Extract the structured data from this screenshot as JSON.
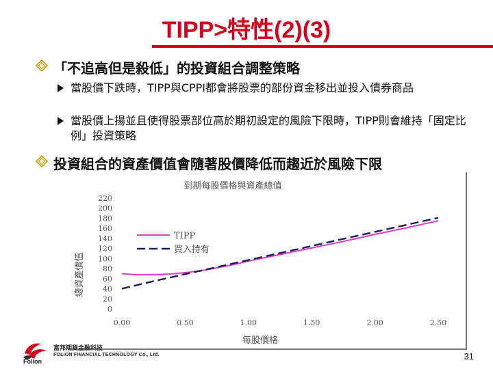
{
  "slide": {
    "title": "TIPP>特性(2)(3)",
    "bullet1": "「不追高但是殺低」的投資組合調整策略",
    "sub1": "當股價下跌時，TIPP與CPPI都會將股票的部份資金移出並投入債券商品",
    "sub2": "當股價上揚並且使得股票部位高於期初設定的風險下限時，TIPP則會維持「固定比例」投資策略",
    "bullet2": "投資組合的資產價值會隨著股價降低而趨近於風險下限",
    "page_number": "31"
  },
  "logo": {
    "cn": "富邦期貨金融科技",
    "en_sub": "FOLION FINANCIAL TECHNOLOGY Co., Ltd.",
    "en_main": "Folion"
  },
  "colors": {
    "title_red": "#d4001c",
    "bullet_diamond": "#c8a000",
    "tipp_line": "#e23cc0",
    "buyhold_line": "#1a1a5e"
  },
  "chart_data": {
    "type": "line",
    "title": "到期每股價格與資產總值",
    "xlabel": "每股價格",
    "ylabel": "總資產價值",
    "xlim": [
      0,
      2.5
    ],
    "ylim": [
      0,
      220
    ],
    "xticks": [
      "0.00",
      "0.50",
      "1.00",
      "1.50",
      "2.00",
      "2.50"
    ],
    "yticks": [
      "0",
      "20",
      "40",
      "60",
      "80",
      "100",
      "120",
      "140",
      "160",
      "180",
      "200",
      "220"
    ],
    "legend_position": "left",
    "series": [
      {
        "name": "TIPP",
        "style": "solid",
        "x": [
          0.0,
          0.1,
          0.2,
          0.3,
          0.4,
          0.5,
          0.6,
          0.7,
          0.8,
          0.9,
          1.0,
          1.25,
          1.5,
          1.75,
          2.0,
          2.25,
          2.5
        ],
        "y": [
          70,
          68,
          68,
          68.5,
          69.5,
          72,
          75,
          79,
          84,
          89,
          95,
          108,
          121,
          134,
          148,
          161,
          175
        ]
      },
      {
        "name": "買入持有",
        "style": "dashed",
        "x": [
          0.0,
          0.25,
          0.5,
          0.75,
          1.0,
          1.25,
          1.5,
          1.75,
          2.0,
          2.25,
          2.5
        ],
        "y": [
          40,
          55,
          69,
          83,
          97,
          111,
          125,
          139,
          153,
          167,
          181
        ]
      }
    ]
  }
}
